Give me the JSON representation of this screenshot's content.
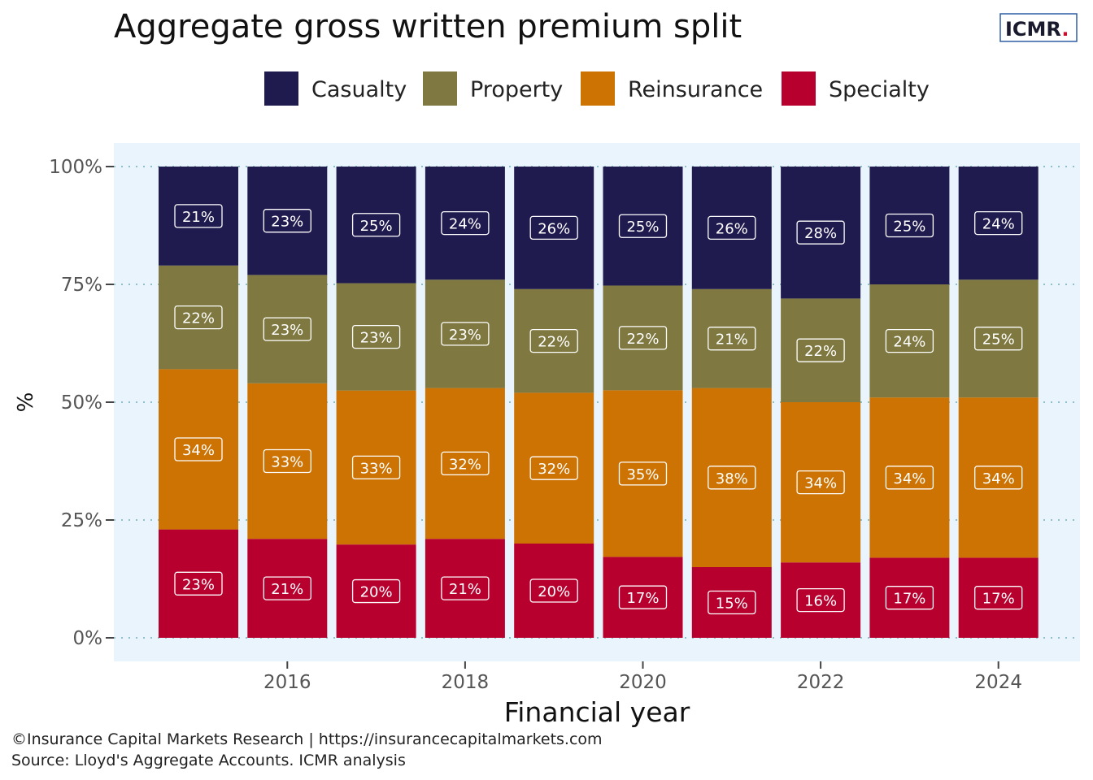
{
  "chart_data": {
    "type": "bar",
    "stacked": true,
    "title": "Aggregate gross written premium split",
    "xlabel": "Financial year",
    "ylabel": "%",
    "x": [
      2015,
      2016,
      2017,
      2018,
      2019,
      2020,
      2021,
      2022,
      2023,
      2024
    ],
    "x_ticks": [
      2016,
      2018,
      2020,
      2022,
      2024
    ],
    "y_ticks": [
      "0%",
      "25%",
      "50%",
      "75%",
      "100%"
    ],
    "ylim": [
      0,
      100
    ],
    "legend_position": "top",
    "series": [
      {
        "name": "Specialty",
        "color": "#b8002f",
        "values": [
          23,
          21,
          20,
          21,
          20,
          17,
          15,
          16,
          17,
          17
        ]
      },
      {
        "name": "Reinsurance",
        "color": "#cc7304",
        "values": [
          34,
          33,
          33,
          32,
          32,
          35,
          38,
          34,
          34,
          34
        ]
      },
      {
        "name": "Property",
        "color": "#7f7840",
        "values": [
          22,
          23,
          23,
          23,
          22,
          22,
          21,
          22,
          24,
          25
        ]
      },
      {
        "name": "Casualty",
        "color": "#201b4f",
        "values": [
          21,
          23,
          25,
          24,
          26,
          25,
          26,
          28,
          25,
          24
        ]
      }
    ],
    "legend_order": [
      "Casualty",
      "Property",
      "Reinsurance",
      "Specialty"
    ],
    "background_color": "#eaf4fc",
    "gridline_color": "#8fbfc9"
  },
  "logo": {
    "text": "ICMR",
    "dot": ".",
    "dot_color": "#c8102e",
    "border_color": "#2f5fa5"
  },
  "caption": {
    "line1": "©Insurance Capital Markets Research | https://insurancecapitalmarkets.com",
    "line2": "Source: Lloyd's Aggregate Accounts. ICMR analysis"
  }
}
